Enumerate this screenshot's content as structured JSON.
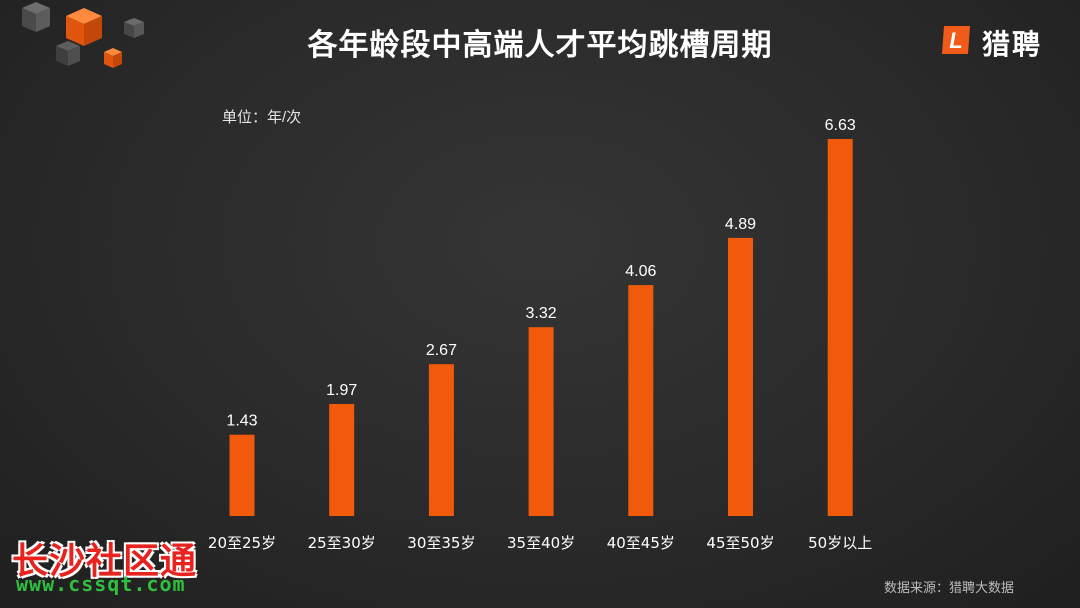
{
  "title": "各年龄段中高端人才平均跳槽周期",
  "logo": {
    "text": "猎聘",
    "mark_letter": "L",
    "brand_color": "#f25a1a"
  },
  "unit_label": "单位：年/次",
  "source": "数据来源：猎聘大数据",
  "watermark": {
    "chinese": "长沙社区通",
    "url": "www.cssqt.com"
  },
  "colors": {
    "bar": "#f05a0a",
    "background": "#2b2b2b",
    "text": "#ffffff",
    "accent_cube": "#f25a1a"
  },
  "chart_data": {
    "type": "bar",
    "title": "各年龄段中高端人才平均跳槽周期",
    "categories": [
      "20至25岁",
      "25至30岁",
      "30至35岁",
      "35至40岁",
      "40至45岁",
      "45至50岁",
      "50岁以上"
    ],
    "values": [
      1.43,
      1.97,
      2.67,
      3.32,
      4.06,
      4.89,
      6.63
    ],
    "value_labels": [
      "1.43",
      "1.97",
      "2.67",
      "3.32",
      "4.06",
      "4.89",
      "6.63"
    ],
    "xlabel": "",
    "ylabel": "",
    "ylim": [
      0,
      6.63
    ],
    "grid": false,
    "legend": "none"
  }
}
